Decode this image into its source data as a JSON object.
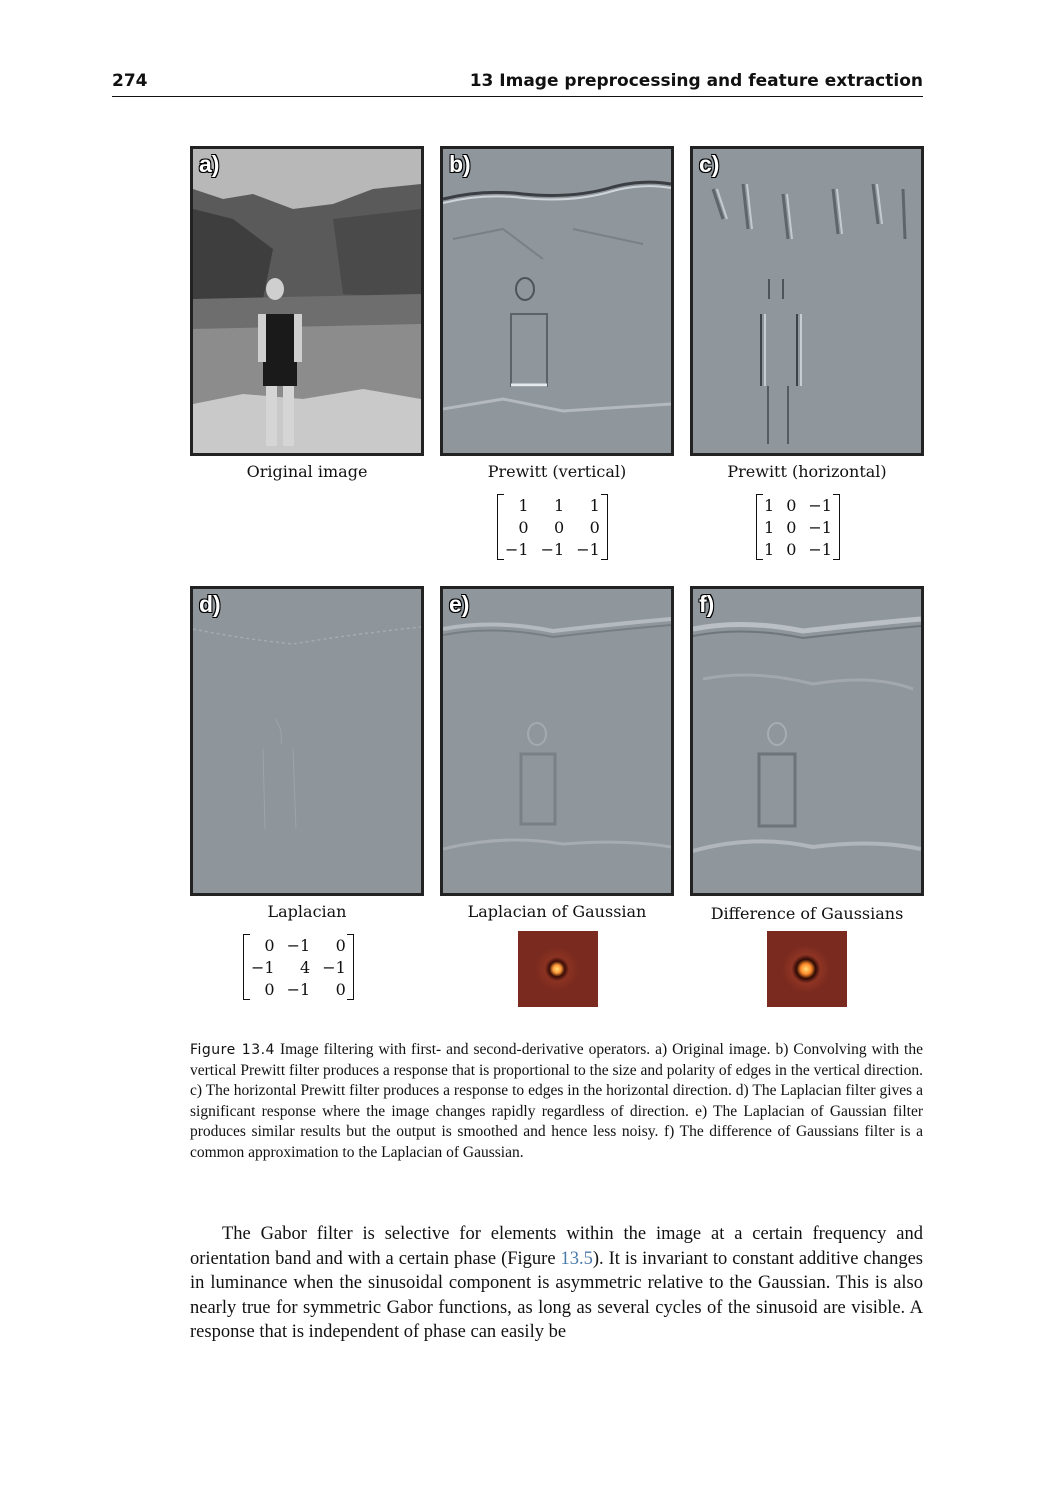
{
  "header": {
    "page_number": "274",
    "chapter_title": "13 Image preprocessing and feature extraction"
  },
  "panels": [
    {
      "label": "a)",
      "caption": "Original image"
    },
    {
      "label": "b)",
      "caption": "Prewitt (vertical)"
    },
    {
      "label": "c)",
      "caption": "Prewitt (horizontal)"
    },
    {
      "label": "d)",
      "caption": "Laplacian"
    },
    {
      "label": "e)",
      "caption": "Laplacian of Gaussian"
    },
    {
      "label": "f)",
      "caption": "Difference of Gaussians"
    }
  ],
  "matrices": {
    "prewitt_vertical": [
      [
        "1",
        "1",
        "1"
      ],
      [
        "0",
        "0",
        "0"
      ],
      [
        "−1",
        "−1",
        "−1"
      ]
    ],
    "prewitt_horizontal": [
      [
        "1",
        "0",
        "−1"
      ],
      [
        "1",
        "0",
        "−1"
      ],
      [
        "1",
        "0",
        "−1"
      ]
    ],
    "laplacian": [
      [
        "0",
        "−1",
        "0"
      ],
      [
        "−1",
        "4",
        "−1"
      ],
      [
        "0",
        "−1",
        "0"
      ]
    ]
  },
  "figure_caption": {
    "label": "Figure 13.4",
    "text": "Image filtering with first- and second-derivative operators. a) Original image. b) Convolving with the vertical Prewitt filter produces a response that is proportional to the size and polarity of edges in the vertical direction. c) The horizontal Prewitt filter produces a response to edges in the horizontal direction. d) The Laplacian filter gives a significant response where the image changes rapidly regardless of direction. e) The Laplacian of Gaussian filter produces similar results but the output is smoothed and hence less noisy. f) The difference of Gaussians filter is a common approximation to the Laplacian of Gaussian."
  },
  "body_text": {
    "before_ref": "The Gabor filter is selective for elements within the image at a certain frequency and orientation band and with a certain phase (Figure ",
    "ref": "13.5",
    "after_ref": "). It is invariant to constant additive changes in luminance when the sinusoidal component is asymmetric relative to the Gaussian. This is also nearly true for symmetric Gabor functions, as long as several cycles of the sinusoid are visible. A response that is independent of phase can easily be"
  }
}
